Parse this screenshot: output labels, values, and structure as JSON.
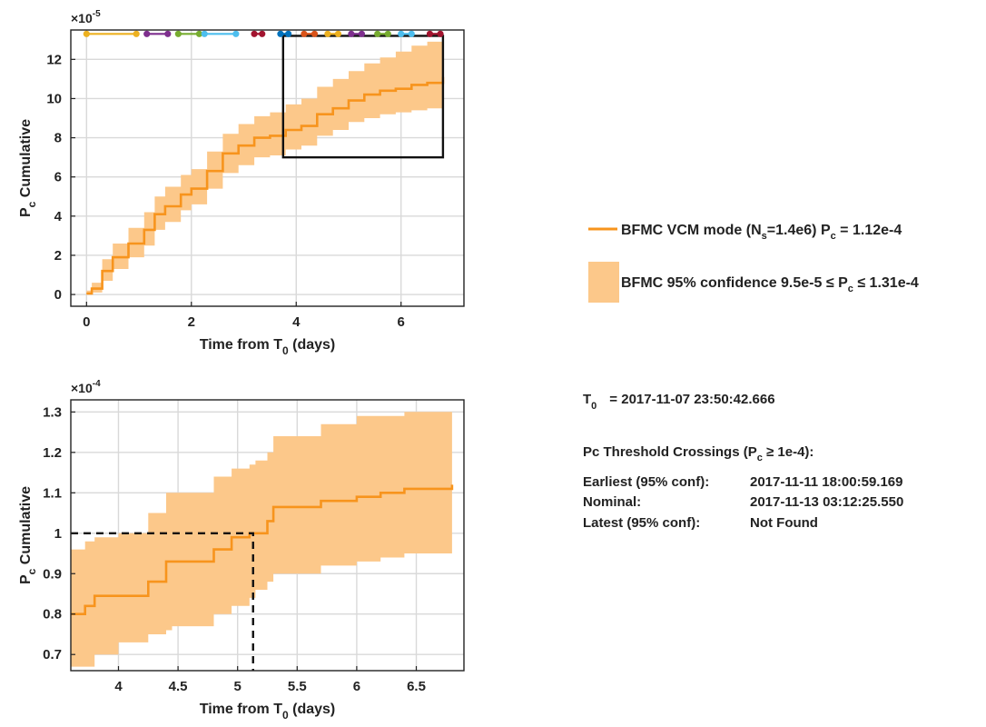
{
  "legend": {
    "line_pre": "BFMC VCM mode (N",
    "line_sub": "s",
    "line_post": "=1.4e6) P",
    "line_sub2": "c",
    "line_end": " = 1.12e-4",
    "band_pre": "BFMC 95% confidence 9.5e-5 ≤ P",
    "band_sub": "c",
    "band_end": " ≤ 1.31e-4",
    "line_color": "#F7941D",
    "band_color": "#FCC88A"
  },
  "info": {
    "t0_label": "T",
    "t0_sub": "0",
    "t0_value": "= 2017-11-07 23:50:42.666",
    "threshold_pre": "Pc Threshold Crossings (P",
    "threshold_sub": "c",
    "threshold_end": " ≥ 1e-4):",
    "rows": [
      {
        "label": "Earliest (95% conf):",
        "value": "2017-11-11 18:00:59.169"
      },
      {
        "label": "Nominal:",
        "value": "2017-11-13 03:12:25.550"
      },
      {
        "label": "Latest (95% conf):",
        "value": "Not Found"
      }
    ]
  },
  "chart_data": [
    {
      "type": "area",
      "exponent_base": "×10",
      "exponent": "-5",
      "xlabel_pre": "Time from T",
      "xlabel_sub": "0",
      "xlabel_post": " (days)",
      "ylabel_pre": "P",
      "ylabel_sub": "c",
      "ylabel_post": " Cumulative",
      "xlim": [
        -0.3,
        7.2
      ],
      "ylim": [
        -0.6,
        13.5
      ],
      "xticks": [
        0,
        2,
        4,
        6
      ],
      "yticks": [
        0,
        2,
        4,
        6,
        8,
        10,
        12
      ],
      "grid": true,
      "series": [
        {
          "x": [
            0,
            0.1,
            0.3,
            0.5,
            0.8,
            1.1,
            1.3,
            1.5,
            1.8,
            2.0,
            2.3,
            2.6,
            2.9,
            3.2,
            3.5,
            3.8,
            4.1,
            4.4,
            4.7,
            5.0,
            5.3,
            5.6,
            5.9,
            6.2,
            6.5,
            6.8
          ],
          "y": [
            0.05,
            0.3,
            1.2,
            1.9,
            2.6,
            3.3,
            4.1,
            4.5,
            5.1,
            5.4,
            6.3,
            7.2,
            7.6,
            8.0,
            8.1,
            8.4,
            8.6,
            9.2,
            9.5,
            9.9,
            10.2,
            10.4,
            10.5,
            10.7,
            10.8,
            11.1
          ],
          "lower": [
            0.0,
            0.1,
            0.7,
            1.3,
            1.9,
            2.5,
            3.3,
            3.7,
            4.3,
            4.6,
            5.4,
            6.2,
            6.6,
            7.0,
            7.1,
            7.4,
            7.6,
            8.1,
            8.4,
            8.8,
            9.0,
            9.2,
            9.3,
            9.4,
            9.5,
            9.5
          ],
          "upper": [
            0.2,
            0.6,
            1.8,
            2.6,
            3.4,
            4.2,
            5.0,
            5.5,
            6.1,
            6.4,
            7.3,
            8.2,
            8.7,
            9.1,
            9.3,
            9.7,
            10.0,
            10.6,
            11.0,
            11.4,
            11.8,
            12.1,
            12.4,
            12.7,
            12.9,
            13.1
          ]
        }
      ],
      "annotations": [
        {
          "type": "box",
          "x": [
            3.75,
            6.8
          ],
          "y": [
            7.0,
            13.2
          ]
        },
        {
          "type": "event_segments",
          "y": 13.3,
          "segments": [
            {
              "x": [
                0.0,
                0.95
              ],
              "color": "#EDB120"
            },
            {
              "x": [
                1.15,
                1.55
              ],
              "color": "#7E2F8E"
            },
            {
              "x": [
                1.75,
                2.15
              ],
              "color": "#77AC30"
            },
            {
              "x": [
                2.25,
                2.85
              ],
              "color": "#4DBEEE"
            },
            {
              "x": [
                3.2,
                3.35
              ],
              "color": "#A2142F"
            },
            {
              "x": [
                3.7,
                3.85
              ],
              "color": "#0072BD"
            },
            {
              "x": [
                4.15,
                4.35
              ],
              "color": "#D95319"
            },
            {
              "x": [
                4.6,
                4.8
              ],
              "color": "#EDB120"
            },
            {
              "x": [
                5.05,
                5.25
              ],
              "color": "#7E2F8E"
            },
            {
              "x": [
                5.55,
                5.75
              ],
              "color": "#77AC30"
            },
            {
              "x": [
                6.0,
                6.2
              ],
              "color": "#4DBEEE"
            },
            {
              "x": [
                6.55,
                6.75
              ],
              "color": "#A2142F"
            }
          ]
        }
      ]
    },
    {
      "type": "area",
      "exponent_base": "×10",
      "exponent": "-4",
      "xlabel_pre": "Time from T",
      "xlabel_sub": "0",
      "xlabel_post": " (days)",
      "ylabel_pre": "P",
      "ylabel_sub": "c",
      "ylabel_post": " Cumulative",
      "xlim": [
        3.6,
        6.9
      ],
      "ylim": [
        0.66,
        1.33
      ],
      "xticks": [
        4,
        4.5,
        5,
        5.5,
        6,
        6.5
      ],
      "xtick_labels": [
        "4",
        "4.5",
        "5",
        "5.5",
        "6",
        "6.5"
      ],
      "yticks": [
        0.7,
        0.8,
        0.9,
        1.0,
        1.1,
        1.2,
        1.3
      ],
      "ytick_labels": [
        "0.7",
        "0.8",
        "0.9",
        "1",
        "1.1",
        "1.2",
        "1.3"
      ],
      "grid": true,
      "series": [
        {
          "x": [
            3.6,
            3.72,
            3.8,
            4.0,
            4.25,
            4.4,
            4.45,
            4.8,
            4.95,
            5.1,
            5.15,
            5.25,
            5.3,
            5.5,
            5.7,
            6.0,
            6.2,
            6.4,
            6.8
          ],
          "y": [
            0.8,
            0.82,
            0.845,
            0.845,
            0.88,
            0.93,
            0.93,
            0.96,
            0.99,
            1.0,
            1.0,
            1.03,
            1.065,
            1.065,
            1.08,
            1.09,
            1.1,
            1.11,
            1.12
          ],
          "lower": [
            0.67,
            0.67,
            0.7,
            0.73,
            0.75,
            0.76,
            0.77,
            0.8,
            0.82,
            0.84,
            0.86,
            0.88,
            0.9,
            0.9,
            0.92,
            0.93,
            0.94,
            0.95,
            0.95
          ],
          "upper": [
            0.96,
            0.98,
            0.99,
            1.0,
            1.05,
            1.1,
            1.1,
            1.14,
            1.16,
            1.17,
            1.18,
            1.2,
            1.24,
            1.24,
            1.27,
            1.29,
            1.29,
            1.3,
            1.31
          ]
        }
      ],
      "annotations": [
        {
          "type": "dashed_threshold",
          "y": 1.0,
          "x_cross": 5.13
        }
      ]
    }
  ]
}
